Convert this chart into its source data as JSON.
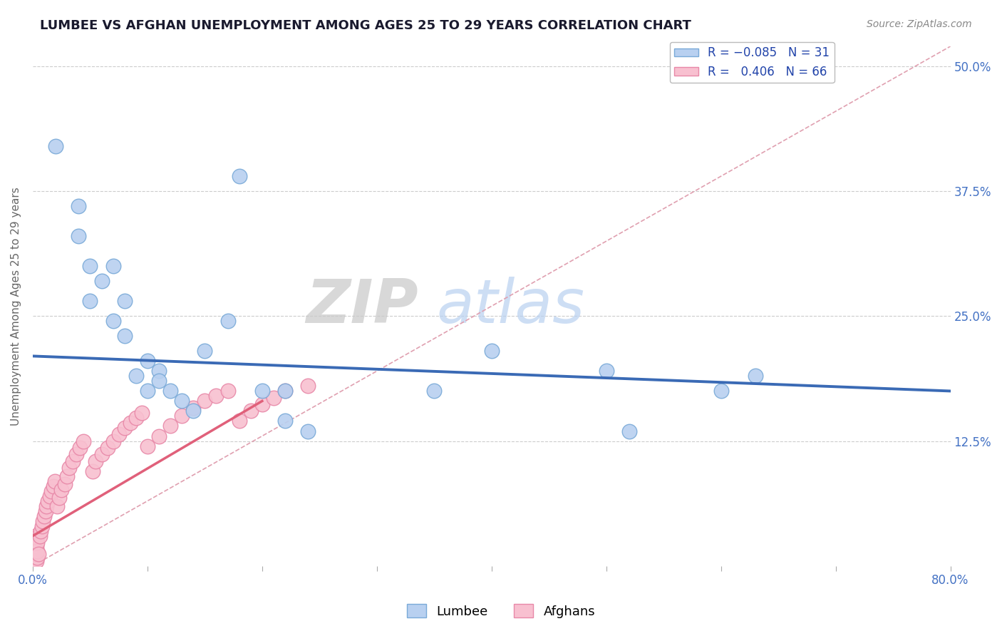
{
  "title": "LUMBEE VS AFGHAN UNEMPLOYMENT AMONG AGES 25 TO 29 YEARS CORRELATION CHART",
  "source": "Source: ZipAtlas.com",
  "ylabel": "Unemployment Among Ages 25 to 29 years",
  "xlim": [
    0.0,
    0.8
  ],
  "ylim": [
    0.0,
    0.52
  ],
  "xticks": [
    0.0,
    0.1,
    0.2,
    0.3,
    0.4,
    0.5,
    0.6,
    0.7,
    0.8
  ],
  "xticklabels": [
    "0.0%",
    "",
    "",
    "",
    "",
    "",
    "",
    "",
    "80.0%"
  ],
  "ytick_positions": [
    0.125,
    0.25,
    0.375,
    0.5
  ],
  "ytick_labels": [
    "12.5%",
    "25.0%",
    "37.5%",
    "50.0%"
  ],
  "R_lumbee": -0.085,
  "N_lumbee": 31,
  "R_afghan": 0.406,
  "N_afghan": 66,
  "lumbee_face": "#b8d0f0",
  "lumbee_edge": "#7aaad8",
  "afghan_face": "#f8c0d0",
  "afghan_edge": "#e888a8",
  "trend_lumbee_color": "#3a6ab5",
  "trend_afghan_color": "#e0607a",
  "diag_color": "#e0a0b0",
  "lumbee_scatter_x": [
    0.02,
    0.04,
    0.04,
    0.05,
    0.06,
    0.07,
    0.08,
    0.09,
    0.1,
    0.11,
    0.12,
    0.13,
    0.14,
    0.15,
    0.17,
    0.18,
    0.22,
    0.22,
    0.24,
    0.4,
    0.52,
    0.63,
    0.05,
    0.07,
    0.08,
    0.1,
    0.11,
    0.2,
    0.35,
    0.5,
    0.6
  ],
  "lumbee_scatter_y": [
    0.42,
    0.36,
    0.33,
    0.3,
    0.285,
    0.3,
    0.265,
    0.19,
    0.205,
    0.195,
    0.175,
    0.165,
    0.155,
    0.215,
    0.245,
    0.39,
    0.175,
    0.145,
    0.135,
    0.215,
    0.135,
    0.19,
    0.265,
    0.245,
    0.23,
    0.175,
    0.185,
    0.175,
    0.175,
    0.195,
    0.175
  ],
  "afghan_x_clusters": [
    [
      0.0,
      0.0,
      0.0,
      0.001,
      0.001,
      0.001,
      0.001,
      0.002,
      0.002,
      0.002,
      0.002,
      0.002,
      0.003,
      0.003,
      0.003,
      0.003,
      0.004,
      0.004,
      0.004,
      0.005
    ],
    [
      0.006,
      0.007,
      0.008,
      0.009,
      0.01,
      0.011,
      0.012,
      0.013,
      0.015,
      0.016,
      0.018,
      0.019
    ],
    [
      0.021,
      0.023,
      0.025,
      0.028,
      0.03,
      0.032,
      0.035,
      0.038,
      0.041,
      0.044
    ],
    [
      0.052,
      0.055,
      0.06,
      0.065,
      0.07,
      0.075,
      0.08,
      0.085,
      0.09,
      0.095
    ],
    [
      0.1,
      0.11,
      0.12,
      0.13,
      0.14,
      0.15,
      0.16,
      0.17
    ],
    [
      0.18,
      0.19,
      0.2,
      0.21,
      0.22,
      0.24
    ]
  ],
  "afghan_y_clusters": [
    [
      0.0,
      0.005,
      0.01,
      0.0,
      0.008,
      0.015,
      0.02,
      0.003,
      0.01,
      0.018,
      0.025,
      0.03,
      0.005,
      0.012,
      0.02,
      0.028,
      0.008,
      0.015,
      0.023,
      0.012
    ],
    [
      0.03,
      0.035,
      0.04,
      0.045,
      0.05,
      0.055,
      0.06,
      0.065,
      0.07,
      0.075,
      0.08,
      0.085
    ],
    [
      0.06,
      0.068,
      0.076,
      0.082,
      0.09,
      0.098,
      0.105,
      0.112,
      0.118,
      0.125
    ],
    [
      0.095,
      0.105,
      0.112,
      0.118,
      0.125,
      0.132,
      0.138,
      0.143,
      0.148,
      0.153
    ],
    [
      0.12,
      0.13,
      0.14,
      0.15,
      0.158,
      0.165,
      0.17,
      0.175
    ],
    [
      0.145,
      0.155,
      0.162,
      0.168,
      0.175,
      0.18
    ]
  ],
  "background_color": "#ffffff",
  "grid_color": "#cccccc",
  "title_color": "#1a1a2e",
  "axis_label_color": "#4472c4"
}
